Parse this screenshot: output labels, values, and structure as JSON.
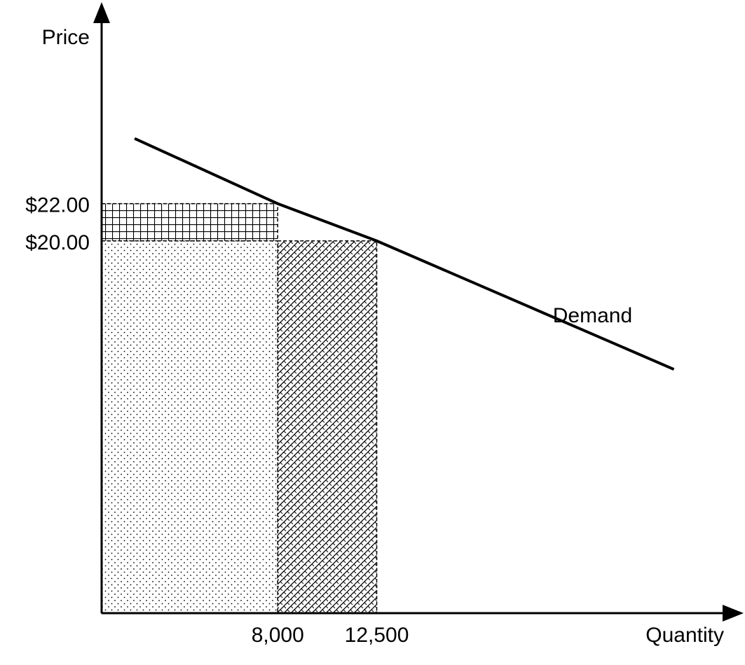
{
  "chart_data": {
    "type": "line",
    "title": "",
    "xlabel": "Quantity",
    "ylabel": "Price",
    "x_ticks": [
      {
        "value": 8000,
        "label": "8,000"
      },
      {
        "value": 12500,
        "label": "12,500"
      }
    ],
    "y_ticks": [
      {
        "value": 20,
        "label": "$20.00"
      },
      {
        "value": 22,
        "label": "$22.00"
      }
    ],
    "series": [
      {
        "name": "Demand",
        "points": [
          {
            "x": 1500,
            "y": 25.5
          },
          {
            "x": 8000,
            "y": 22
          },
          {
            "x": 12500,
            "y": 20
          },
          {
            "x": 26000,
            "y": 13.1
          }
        ]
      }
    ],
    "shaded_regions": [
      {
        "pattern": "grid",
        "x": [
          0,
          8000
        ],
        "y": [
          20,
          22
        ]
      },
      {
        "pattern": "dots",
        "x": [
          0,
          8000
        ],
        "y": [
          0,
          20
        ]
      },
      {
        "pattern": "diagonal-crosshatch",
        "x": [
          8000,
          12500
        ],
        "y": [
          0,
          20
        ]
      }
    ],
    "xlim": [
      0,
      28500
    ],
    "ylim": [
      0,
      32
    ],
    "grid": false,
    "colors": {
      "line": "#000000",
      "background": "#ffffff"
    }
  }
}
